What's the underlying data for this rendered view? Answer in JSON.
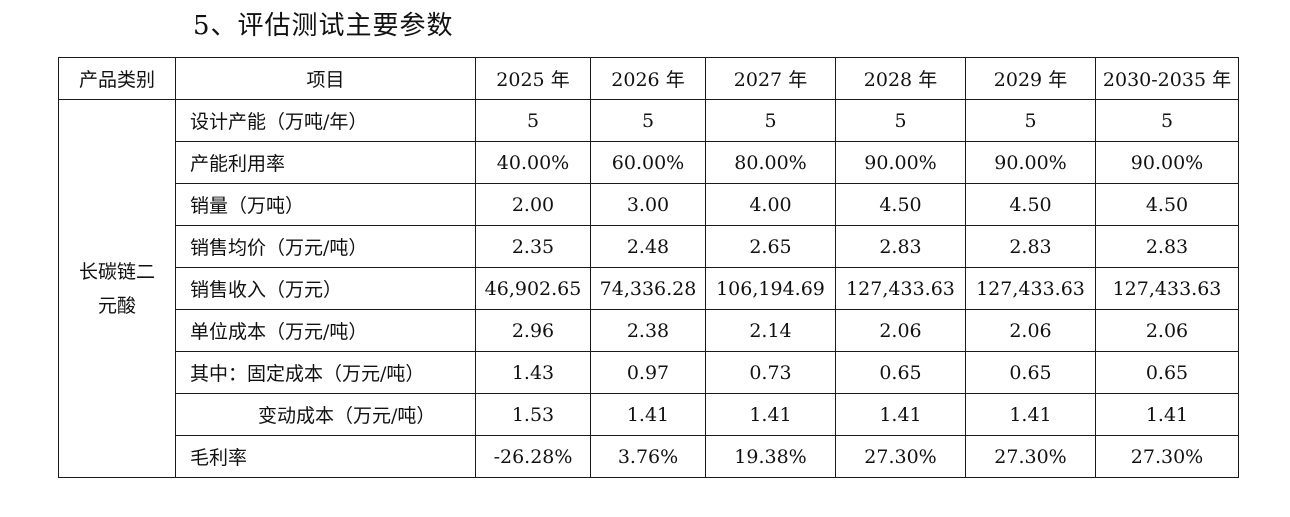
{
  "section_title": "5、评估测试主要参数",
  "table": {
    "headers": [
      "产品类别",
      "项目",
      "2025 年",
      "2026 年",
      "2027 年",
      "2028 年",
      "2029 年",
      "2030-2035 年"
    ],
    "category": "长碳链二元酸",
    "rows": [
      {
        "item": "设计产能（万吨/年）",
        "values": [
          "5",
          "5",
          "5",
          "5",
          "5",
          "5"
        ]
      },
      {
        "item": "产能利用率",
        "values": [
          "40.00%",
          "60.00%",
          "80.00%",
          "90.00%",
          "90.00%",
          "90.00%"
        ]
      },
      {
        "item": "销量（万吨）",
        "values": [
          "2.00",
          "3.00",
          "4.00",
          "4.50",
          "4.50",
          "4.50"
        ]
      },
      {
        "item": "销售均价（万元/吨）",
        "values": [
          "2.35",
          "2.48",
          "2.65",
          "2.83",
          "2.83",
          "2.83"
        ]
      },
      {
        "item": "销售收入（万元）",
        "values": [
          "46,902.65",
          "74,336.28",
          "106,194.69",
          "127,433.63",
          "127,433.63",
          "127,433.63"
        ]
      },
      {
        "item": "单位成本（万元/吨）",
        "values": [
          "2.96",
          "2.38",
          "2.14",
          "2.06",
          "2.06",
          "2.06"
        ]
      },
      {
        "item": "其中：固定成本（万元/吨）",
        "values": [
          "1.43",
          "0.97",
          "0.73",
          "0.65",
          "0.65",
          "0.65"
        ]
      },
      {
        "item": "变动成本（万元/吨）",
        "values": [
          "1.53",
          "1.41",
          "1.41",
          "1.41",
          "1.41",
          "1.41"
        ]
      },
      {
        "item": "毛利率",
        "values": [
          "-26.28%",
          "3.76%",
          "19.38%",
          "27.30%",
          "27.30%",
          "27.30%"
        ]
      }
    ]
  }
}
